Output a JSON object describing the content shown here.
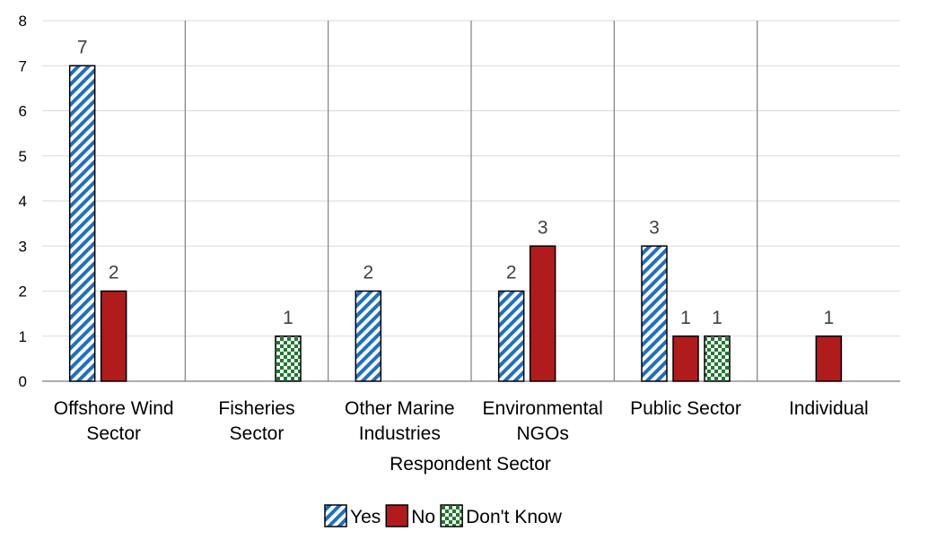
{
  "chart_data": {
    "type": "bar",
    "title": "",
    "xlabel": "Respondent Sector",
    "ylabel": "",
    "ylim": [
      0,
      8
    ],
    "yticks": [
      0,
      1,
      2,
      3,
      4,
      5,
      6,
      7,
      8
    ],
    "grid": true,
    "legend_position": "bottom",
    "categories": [
      [
        "Offshore Wind",
        "Sector"
      ],
      [
        "Fisheries",
        "Sector"
      ],
      [
        "Other Marine",
        "Industries"
      ],
      [
        "Environmental",
        "NGOs"
      ],
      [
        "Public Sector"
      ],
      [
        "Individual"
      ]
    ],
    "series": [
      {
        "name": "Yes",
        "values": [
          7,
          null,
          2,
          2,
          3,
          null
        ],
        "color": "#1f6fc5",
        "pattern": "diagonal-stripes"
      },
      {
        "name": "No",
        "values": [
          2,
          null,
          null,
          3,
          1,
          1
        ],
        "color": "#b01c1c",
        "pattern": "solid"
      },
      {
        "name": "Don't Know",
        "values": [
          null,
          1,
          null,
          null,
          1,
          null
        ],
        "color": "#1e7a2e",
        "pattern": "checkerboard"
      }
    ]
  }
}
